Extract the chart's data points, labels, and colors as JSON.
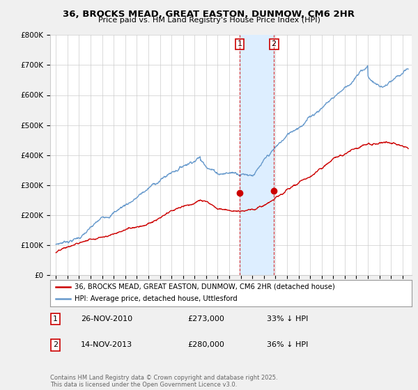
{
  "title": "36, BROCKS MEAD, GREAT EASTON, DUNMOW, CM6 2HR",
  "subtitle": "Price paid vs. HM Land Registry's House Price Index (HPI)",
  "red_label": "36, BROCKS MEAD, GREAT EASTON, DUNMOW, CM6 2HR (detached house)",
  "blue_label": "HPI: Average price, detached house, Uttlesford",
  "purchase1_date": "26-NOV-2010",
  "purchase1_price": "£273,000",
  "purchase1_hpi": "33% ↓ HPI",
  "purchase1_year": 2010.9,
  "purchase1_price_val": 273000,
  "purchase2_date": "14-NOV-2013",
  "purchase2_price": "£280,000",
  "purchase2_hpi": "36% ↓ HPI",
  "purchase2_year": 2013.87,
  "purchase2_price_val": 280000,
  "ylim_min": 0,
  "ylim_max": 800000,
  "xlim_min": 1994.5,
  "xlim_max": 2025.8,
  "copyright_text": "Contains HM Land Registry data © Crown copyright and database right 2025.\nThis data is licensed under the Open Government Licence v3.0.",
  "bg_color": "#f0f0f0",
  "plot_bg_color": "#ffffff",
  "red_color": "#cc0000",
  "blue_color": "#6699cc",
  "shade_color": "#ddeeff"
}
